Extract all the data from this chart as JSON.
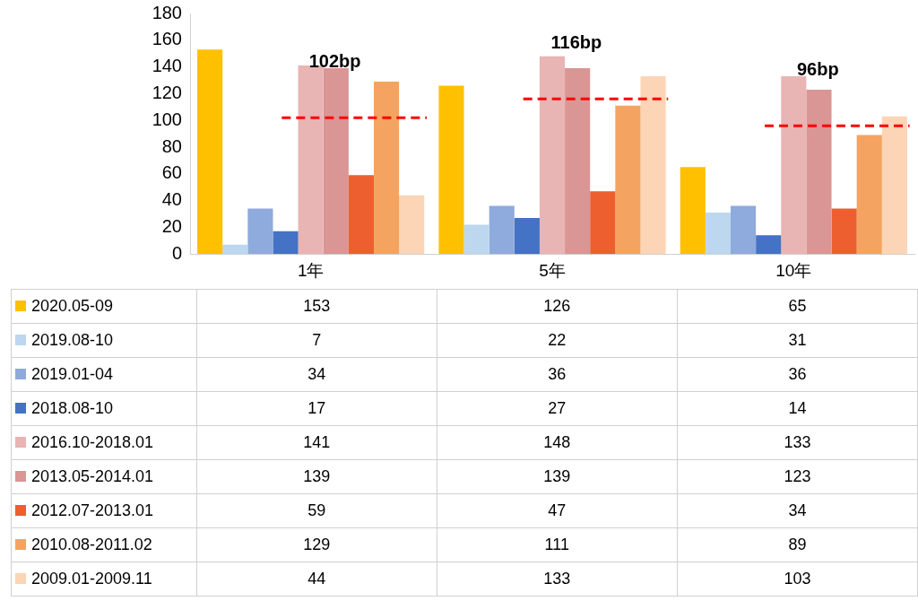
{
  "chart_data": {
    "type": "bar",
    "categories": [
      "1年",
      "5年",
      "10年"
    ],
    "series": [
      {
        "name": "2020.05-09",
        "color": "#ffc000",
        "values": [
          153,
          126,
          65
        ]
      },
      {
        "name": "2019.08-10",
        "color": "#bdd7ee",
        "values": [
          7,
          22,
          31
        ]
      },
      {
        "name": "2019.01-04",
        "color": "#8faadc",
        "values": [
          34,
          36,
          36
        ]
      },
      {
        "name": "2018.08-10",
        "color": "#4472c4",
        "values": [
          17,
          27,
          14
        ]
      },
      {
        "name": "2016.10-2018.01",
        "color": "#e8b4b4",
        "values": [
          141,
          148,
          133
        ]
      },
      {
        "name": "2013.05-2014.01",
        "color": "#d99694",
        "values": [
          139,
          139,
          123
        ]
      },
      {
        "name": "2012.07-2013.01",
        "color": "#ed5f2f",
        "values": [
          59,
          47,
          34
        ]
      },
      {
        "name": "2010.08-2011.02",
        "color": "#f4a460",
        "values": [
          129,
          111,
          89
        ]
      },
      {
        "name": "2009.01-2009.11",
        "color": "#fbd5b5",
        "values": [
          44,
          133,
          103
        ]
      }
    ],
    "ylim": [
      0,
      180
    ],
    "yticks": [
      0,
      20,
      40,
      60,
      80,
      100,
      120,
      140,
      160,
      180
    ],
    "ref_lines": [
      {
        "axis": "y",
        "value": 102,
        "label": "102bp",
        "color": "#ff0000",
        "line_style": "dashed"
      },
      {
        "axis": "y",
        "value": 116,
        "label": "116bp",
        "color": "#ff0000",
        "line_style": "dashed"
      },
      {
        "axis": "y",
        "value": 96,
        "label": "96bp",
        "color": "#ff0000",
        "line_style": "dashed"
      }
    ],
    "grid": false,
    "legend": "bottom",
    "data_labels": true
  }
}
